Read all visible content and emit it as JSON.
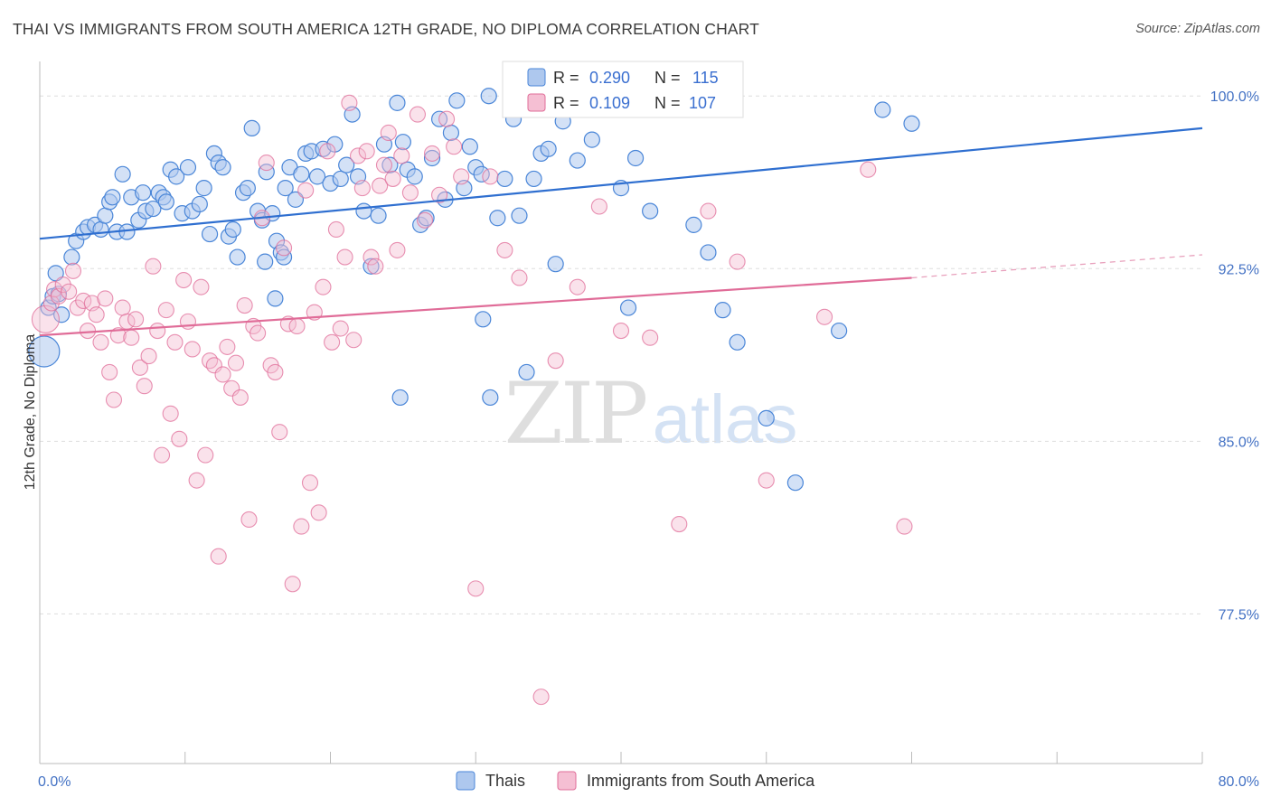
{
  "title": "THAI VS IMMIGRANTS FROM SOUTH AMERICA 12TH GRADE, NO DIPLOMA CORRELATION CHART",
  "source": "Source: ZipAtlas.com",
  "watermark": {
    "zip": "ZIP",
    "atlas": "atlas"
  },
  "colors": {
    "thai": "#4a86d8",
    "thai_fill": "#aec8ee",
    "sa": "#e06c98",
    "sa_fill": "#f5bfd3",
    "tick_text": "#4472c4",
    "grid": "#dddddd"
  },
  "legend": {
    "rows": [
      {
        "r_label": "R =",
        "r_value": "0.290",
        "n_label": "N =",
        "n_value": "115"
      },
      {
        "r_label": "R =",
        "r_value": "0.109",
        "n_label": "N =",
        "n_value": "107"
      }
    ]
  },
  "bottom_legend": [
    "Thais",
    "Immigrants from South America"
  ],
  "chart_data": {
    "type": "scatter",
    "title": "THAI VS IMMIGRANTS FROM SOUTH AMERICA 12TH GRADE, NO DIPLOMA CORRELATION CHART",
    "xlabel": "",
    "ylabel": "12th Grade, No Diploma",
    "xlim": [
      0,
      80
    ],
    "ylim": [
      71,
      101.5
    ],
    "x_tick_labels": [
      {
        "value": 0,
        "label": "0.0%"
      },
      {
        "value": 80,
        "label": "80.0%"
      }
    ],
    "y_tick_labels": [
      {
        "value": 100,
        "label": "100.0%"
      },
      {
        "value": 92.5,
        "label": "92.5%"
      },
      {
        "value": 85,
        "label": "85.0%"
      },
      {
        "value": 77.5,
        "label": "77.5%"
      }
    ],
    "grid": true,
    "legend_position": "top-center",
    "series": [
      {
        "name": "Thais",
        "R": 0.29,
        "N": 115,
        "trend": {
          "x0": 0,
          "y0": 93.8,
          "x1": 80,
          "y1": 98.6
        },
        "points": [
          [
            0.3,
            88.9
          ],
          [
            0.6,
            90.8
          ],
          [
            0.9,
            91.3
          ],
          [
            1.1,
            92.3
          ],
          [
            1.3,
            91.4
          ],
          [
            1.5,
            90.5
          ],
          [
            2.2,
            93.0
          ],
          [
            2.5,
            93.7
          ],
          [
            3.0,
            94.1
          ],
          [
            3.3,
            94.3
          ],
          [
            3.8,
            94.4
          ],
          [
            4.2,
            94.2
          ],
          [
            4.5,
            94.8
          ],
          [
            4.8,
            95.4
          ],
          [
            5.0,
            95.6
          ],
          [
            5.3,
            94.1
          ],
          [
            5.7,
            96.6
          ],
          [
            6.0,
            94.1
          ],
          [
            6.3,
            95.6
          ],
          [
            6.8,
            94.6
          ],
          [
            7.1,
            95.8
          ],
          [
            7.3,
            95.0
          ],
          [
            7.8,
            95.1
          ],
          [
            8.2,
            95.8
          ],
          [
            8.5,
            95.6
          ],
          [
            8.7,
            95.4
          ],
          [
            9.0,
            96.8
          ],
          [
            9.4,
            96.5
          ],
          [
            9.8,
            94.9
          ],
          [
            10.2,
            96.9
          ],
          [
            10.5,
            95.0
          ],
          [
            11.0,
            95.3
          ],
          [
            11.3,
            96.0
          ],
          [
            11.7,
            94.0
          ],
          [
            12.0,
            97.5
          ],
          [
            12.3,
            97.1
          ],
          [
            12.6,
            96.9
          ],
          [
            13.0,
            93.9
          ],
          [
            13.3,
            94.2
          ],
          [
            13.6,
            93.0
          ],
          [
            14.0,
            95.8
          ],
          [
            14.3,
            96.0
          ],
          [
            14.6,
            98.6
          ],
          [
            15.0,
            95.0
          ],
          [
            15.3,
            94.6
          ],
          [
            15.6,
            96.7
          ],
          [
            16.0,
            94.9
          ],
          [
            16.3,
            93.7
          ],
          [
            16.6,
            93.2
          ],
          [
            16.9,
            96.0
          ],
          [
            17.2,
            96.9
          ],
          [
            17.6,
            95.5
          ],
          [
            18.0,
            96.6
          ],
          [
            18.3,
            97.5
          ],
          [
            18.7,
            97.6
          ],
          [
            19.1,
            96.5
          ],
          [
            19.5,
            97.7
          ],
          [
            20.0,
            96.2
          ],
          [
            20.3,
            97.9
          ],
          [
            20.7,
            96.4
          ],
          [
            21.1,
            97.0
          ],
          [
            21.5,
            99.2
          ],
          [
            21.9,
            96.5
          ],
          [
            22.3,
            95.0
          ],
          [
            22.8,
            92.6
          ],
          [
            23.3,
            94.8
          ],
          [
            23.7,
            97.9
          ],
          [
            24.1,
            97.0
          ],
          [
            24.6,
            99.7
          ],
          [
            25.0,
            98.0
          ],
          [
            25.3,
            96.8
          ],
          [
            25.8,
            96.5
          ],
          [
            26.2,
            94.4
          ],
          [
            26.6,
            94.7
          ],
          [
            27.0,
            97.3
          ],
          [
            27.5,
            99.0
          ],
          [
            27.9,
            95.5
          ],
          [
            28.3,
            98.4
          ],
          [
            28.7,
            99.8
          ],
          [
            29.2,
            96.0
          ],
          [
            29.6,
            97.8
          ],
          [
            30.0,
            96.9
          ],
          [
            30.4,
            96.6
          ],
          [
            30.9,
            100.0
          ],
          [
            31.5,
            94.7
          ],
          [
            32.0,
            96.4
          ],
          [
            32.6,
            99.0
          ],
          [
            33.0,
            94.8
          ],
          [
            34.0,
            96.4
          ],
          [
            34.5,
            97.5
          ],
          [
            35.0,
            97.7
          ],
          [
            36.0,
            98.9
          ],
          [
            37.0,
            97.2
          ],
          [
            38.0,
            98.1
          ],
          [
            39.0,
            100.0
          ],
          [
            40.0,
            96.0
          ],
          [
            41.0,
            97.3
          ],
          [
            42.0,
            95.0
          ],
          [
            43.0,
            99.5
          ],
          [
            45.0,
            94.4
          ],
          [
            47.0,
            90.7
          ],
          [
            48.0,
            89.3
          ],
          [
            50.0,
            86.0
          ],
          [
            52.0,
            83.2
          ],
          [
            55.0,
            89.8
          ],
          [
            58.0,
            99.4
          ],
          [
            60.0,
            98.8
          ],
          [
            15.5,
            92.8
          ],
          [
            16.2,
            91.2
          ],
          [
            16.8,
            93.0
          ],
          [
            24.8,
            86.9
          ],
          [
            30.5,
            90.3
          ],
          [
            31.0,
            86.9
          ],
          [
            33.5,
            88.0
          ],
          [
            35.5,
            92.7
          ],
          [
            40.5,
            90.8
          ],
          [
            46.0,
            93.2
          ]
        ]
      },
      {
        "name": "Immigrants from South America",
        "R": 0.109,
        "N": 107,
        "trend": {
          "x0": 0,
          "y0": 89.6,
          "x1": 60,
          "y1": 92.1,
          "dash_x1": 80,
          "dash_y1": 93.1
        },
        "points": [
          [
            0.4,
            90.3
          ],
          [
            0.8,
            91.0
          ],
          [
            1.0,
            91.6
          ],
          [
            1.3,
            91.3
          ],
          [
            1.6,
            91.8
          ],
          [
            2.0,
            91.5
          ],
          [
            2.3,
            92.4
          ],
          [
            2.6,
            90.8
          ],
          [
            3.0,
            91.1
          ],
          [
            3.3,
            89.8
          ],
          [
            3.6,
            91.0
          ],
          [
            3.9,
            90.5
          ],
          [
            4.2,
            89.3
          ],
          [
            4.5,
            91.2
          ],
          [
            4.8,
            88.0
          ],
          [
            5.1,
            86.8
          ],
          [
            5.4,
            89.6
          ],
          [
            5.7,
            90.8
          ],
          [
            6.0,
            90.2
          ],
          [
            6.3,
            89.5
          ],
          [
            6.6,
            90.3
          ],
          [
            6.9,
            88.2
          ],
          [
            7.2,
            87.4
          ],
          [
            7.5,
            88.7
          ],
          [
            7.8,
            92.6
          ],
          [
            8.1,
            89.8
          ],
          [
            8.4,
            84.4
          ],
          [
            8.7,
            90.7
          ],
          [
            9.0,
            86.2
          ],
          [
            9.3,
            89.3
          ],
          [
            9.6,
            85.1
          ],
          [
            9.9,
            92.0
          ],
          [
            10.2,
            90.2
          ],
          [
            10.5,
            89.0
          ],
          [
            10.8,
            83.3
          ],
          [
            11.1,
            91.7
          ],
          [
            11.4,
            84.4
          ],
          [
            11.7,
            88.5
          ],
          [
            12.0,
            88.3
          ],
          [
            12.3,
            80.0
          ],
          [
            12.6,
            87.9
          ],
          [
            12.9,
            89.1
          ],
          [
            13.2,
            87.3
          ],
          [
            13.5,
            88.4
          ],
          [
            13.8,
            86.9
          ],
          [
            14.1,
            90.9
          ],
          [
            14.4,
            81.6
          ],
          [
            14.7,
            90.0
          ],
          [
            15.0,
            89.7
          ],
          [
            15.3,
            94.7
          ],
          [
            15.6,
            97.1
          ],
          [
            15.9,
            88.3
          ],
          [
            16.2,
            88.0
          ],
          [
            16.5,
            85.4
          ],
          [
            16.8,
            93.4
          ],
          [
            17.1,
            90.1
          ],
          [
            17.4,
            78.8
          ],
          [
            17.7,
            90.0
          ],
          [
            18.0,
            81.3
          ],
          [
            18.3,
            95.9
          ],
          [
            18.6,
            83.2
          ],
          [
            18.9,
            90.6
          ],
          [
            19.2,
            81.9
          ],
          [
            19.5,
            91.7
          ],
          [
            19.8,
            97.6
          ],
          [
            20.1,
            89.3
          ],
          [
            20.4,
            94.2
          ],
          [
            20.7,
            89.9
          ],
          [
            21.0,
            93.0
          ],
          [
            21.3,
            99.7
          ],
          [
            21.6,
            89.4
          ],
          [
            21.9,
            97.4
          ],
          [
            22.2,
            96.0
          ],
          [
            22.5,
            97.6
          ],
          [
            22.8,
            93.0
          ],
          [
            23.1,
            92.6
          ],
          [
            23.4,
            96.1
          ],
          [
            23.7,
            97.0
          ],
          [
            24.0,
            98.4
          ],
          [
            24.3,
            96.4
          ],
          [
            24.6,
            93.3
          ],
          [
            24.9,
            97.4
          ],
          [
            25.5,
            95.8
          ],
          [
            26.0,
            99.2
          ],
          [
            26.5,
            94.6
          ],
          [
            27.0,
            97.5
          ],
          [
            27.5,
            95.7
          ],
          [
            28.0,
            99.0
          ],
          [
            28.5,
            97.8
          ],
          [
            29.0,
            96.5
          ],
          [
            30.0,
            78.6
          ],
          [
            31.0,
            96.5
          ],
          [
            32.0,
            93.3
          ],
          [
            33.0,
            92.1
          ],
          [
            34.5,
            73.9
          ],
          [
            35.5,
            88.5
          ],
          [
            37.0,
            91.7
          ],
          [
            38.5,
            95.2
          ],
          [
            40.0,
            89.8
          ],
          [
            42.0,
            89.5
          ],
          [
            44.0,
            81.4
          ],
          [
            46.0,
            95.0
          ],
          [
            48.0,
            92.8
          ],
          [
            50.0,
            83.3
          ],
          [
            54.0,
            90.4
          ],
          [
            57.0,
            96.8
          ],
          [
            59.5,
            81.3
          ]
        ]
      }
    ]
  }
}
